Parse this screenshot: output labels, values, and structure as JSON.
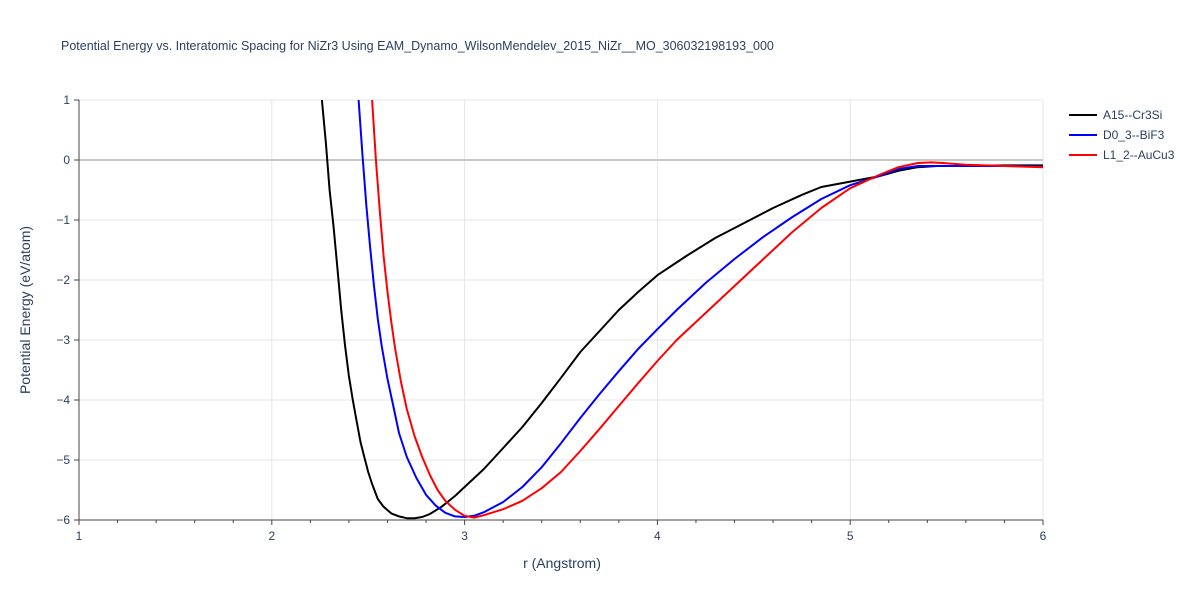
{
  "chart_data": {
    "type": "line",
    "title": "Potential Energy vs. Interatomic Spacing for NiZr3 Using EAM_Dynamo_WilsonMendelev_2015_NiZr__MO_306032198193_000",
    "xlabel": "r (Angstrom)",
    "ylabel": "Potential Energy (eV/atom)",
    "xlim": [
      1,
      6
    ],
    "ylim": [
      -6,
      1
    ],
    "xticks": [
      1,
      2,
      3,
      4,
      5,
      6
    ],
    "yticks": [
      1,
      0,
      -1,
      -2,
      -3,
      -4,
      -5,
      -6
    ],
    "ytick_labels": [
      "1",
      "0",
      "−1",
      "−2",
      "−3",
      "−4",
      "−5",
      "−6"
    ],
    "grid": true,
    "legend_position": "top-right",
    "series": [
      {
        "name": "A15--Cr3Si",
        "color": "#000000",
        "x": [
          2.26,
          2.28,
          2.3,
          2.32,
          2.34,
          2.36,
          2.38,
          2.4,
          2.42,
          2.44,
          2.46,
          2.48,
          2.5,
          2.52,
          2.55,
          2.58,
          2.62,
          2.66,
          2.7,
          2.74,
          2.78,
          2.82,
          2.88,
          2.95,
          3.0,
          3.1,
          3.2,
          3.3,
          3.4,
          3.5,
          3.6,
          3.7,
          3.8,
          3.9,
          4.0,
          4.15,
          4.3,
          4.45,
          4.6,
          4.75,
          4.85,
          5.0,
          5.15,
          5.25,
          5.35,
          5.45,
          5.6,
          5.8,
          6.0
        ],
        "y": [
          1.0,
          0.3,
          -0.5,
          -1.1,
          -1.8,
          -2.5,
          -3.1,
          -3.6,
          -4.0,
          -4.35,
          -4.7,
          -4.95,
          -5.2,
          -5.4,
          -5.65,
          -5.78,
          -5.89,
          -5.94,
          -5.97,
          -5.97,
          -5.95,
          -5.9,
          -5.78,
          -5.6,
          -5.45,
          -5.15,
          -4.8,
          -4.45,
          -4.05,
          -3.63,
          -3.2,
          -2.85,
          -2.5,
          -2.2,
          -1.92,
          -1.6,
          -1.3,
          -1.05,
          -0.8,
          -0.58,
          -0.45,
          -0.36,
          -0.27,
          -0.18,
          -0.12,
          -0.1,
          -0.1,
          -0.09,
          -0.09
        ]
      },
      {
        "name": "D0_3--BiF3",
        "color": "#0000ff",
        "x": [
          2.45,
          2.47,
          2.49,
          2.51,
          2.53,
          2.55,
          2.57,
          2.6,
          2.63,
          2.66,
          2.7,
          2.75,
          2.8,
          2.85,
          2.9,
          2.95,
          3.0,
          3.05,
          3.1,
          3.2,
          3.3,
          3.4,
          3.5,
          3.6,
          3.7,
          3.8,
          3.9,
          4.0,
          4.1,
          4.25,
          4.4,
          4.55,
          4.7,
          4.85,
          5.0,
          5.15,
          5.25,
          5.35,
          5.45,
          5.6,
          5.8,
          6.0
        ],
        "y": [
          1.0,
          0.1,
          -0.75,
          -1.45,
          -2.1,
          -2.65,
          -3.1,
          -3.65,
          -4.1,
          -4.55,
          -4.95,
          -5.3,
          -5.58,
          -5.76,
          -5.88,
          -5.94,
          -5.95,
          -5.93,
          -5.87,
          -5.7,
          -5.45,
          -5.12,
          -4.72,
          -4.3,
          -3.9,
          -3.52,
          -3.15,
          -2.82,
          -2.5,
          -2.05,
          -1.65,
          -1.28,
          -0.95,
          -0.65,
          -0.42,
          -0.27,
          -0.15,
          -0.1,
          -0.1,
          -0.1,
          -0.1,
          -0.11
        ]
      },
      {
        "name": "L1_2--AuCu3",
        "color": "#ff0000",
        "x": [
          2.52,
          2.54,
          2.56,
          2.58,
          2.6,
          2.62,
          2.64,
          2.67,
          2.7,
          2.74,
          2.78,
          2.82,
          2.86,
          2.9,
          2.95,
          3.0,
          3.05,
          3.1,
          3.2,
          3.3,
          3.4,
          3.5,
          3.6,
          3.7,
          3.8,
          3.9,
          4.0,
          4.1,
          4.25,
          4.4,
          4.55,
          4.7,
          4.85,
          5.0,
          5.15,
          5.25,
          5.35,
          5.42,
          5.48,
          5.6,
          5.8,
          6.0
        ],
        "y": [
          1.0,
          0.0,
          -0.85,
          -1.6,
          -2.2,
          -2.7,
          -3.15,
          -3.7,
          -4.15,
          -4.6,
          -4.95,
          -5.25,
          -5.5,
          -5.68,
          -5.83,
          -5.93,
          -5.96,
          -5.92,
          -5.82,
          -5.68,
          -5.47,
          -5.2,
          -4.85,
          -4.48,
          -4.1,
          -3.72,
          -3.35,
          -3.0,
          -2.55,
          -2.1,
          -1.65,
          -1.2,
          -0.8,
          -0.47,
          -0.25,
          -0.12,
          -0.05,
          -0.04,
          -0.05,
          -0.08,
          -0.1,
          -0.12
        ]
      }
    ]
  }
}
